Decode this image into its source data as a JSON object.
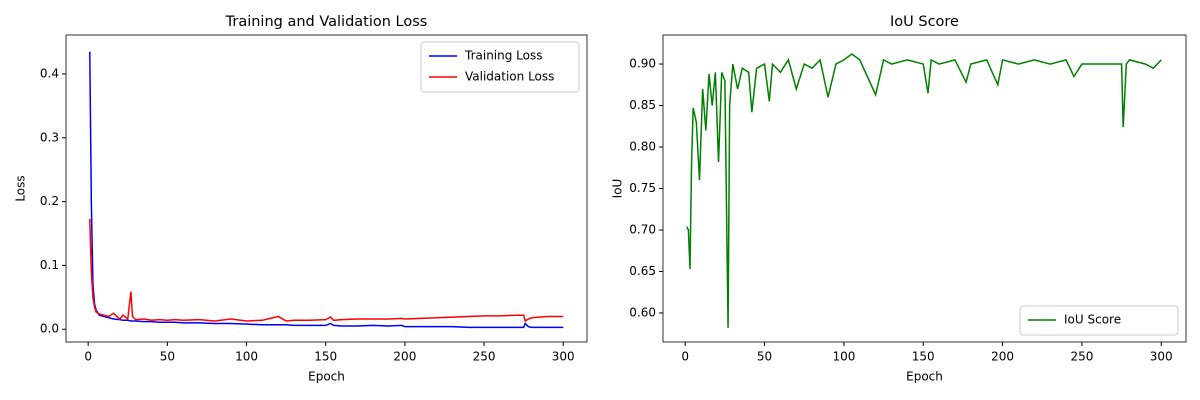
{
  "chart_data": [
    {
      "type": "line",
      "title": "Training and Validation Loss",
      "x_label": "Epoch",
      "y_label": "Loss",
      "x": [
        1,
        2,
        3,
        4,
        5,
        7,
        10,
        13,
        16,
        20,
        22,
        25,
        27,
        28,
        30,
        35,
        40,
        45,
        50,
        55,
        60,
        70,
        80,
        90,
        100,
        110,
        120,
        125,
        130,
        140,
        150,
        153,
        155,
        160,
        170,
        180,
        190,
        198,
        200,
        210,
        220,
        230,
        240,
        250,
        260,
        270,
        275,
        276,
        278,
        280,
        290,
        300
      ],
      "series": [
        {
          "name": "Training Loss",
          "color": "#0000ff",
          "values": [
            0.435,
            0.2,
            0.07,
            0.04,
            0.03,
            0.022,
            0.02,
            0.018,
            0.016,
            0.015,
            0.014,
            0.014,
            0.013,
            0.013,
            0.013,
            0.012,
            0.012,
            0.011,
            0.011,
            0.011,
            0.01,
            0.01,
            0.009,
            0.009,
            0.008,
            0.007,
            0.007,
            0.007,
            0.006,
            0.006,
            0.006,
            0.009,
            0.006,
            0.005,
            0.005,
            0.006,
            0.005,
            0.006,
            0.004,
            0.004,
            0.004,
            0.004,
            0.003,
            0.003,
            0.003,
            0.003,
            0.003,
            0.009,
            0.004,
            0.003,
            0.003,
            0.003
          ]
        },
        {
          "name": "Validation Loss",
          "color": "#ff0000",
          "values": [
            0.173,
            0.09,
            0.05,
            0.035,
            0.027,
            0.024,
            0.022,
            0.02,
            0.025,
            0.016,
            0.022,
            0.016,
            0.059,
            0.02,
            0.015,
            0.016,
            0.014,
            0.015,
            0.014,
            0.015,
            0.014,
            0.015,
            0.013,
            0.016,
            0.013,
            0.014,
            0.02,
            0.013,
            0.014,
            0.014,
            0.015,
            0.019,
            0.014,
            0.015,
            0.016,
            0.016,
            0.016,
            0.017,
            0.016,
            0.017,
            0.018,
            0.019,
            0.02,
            0.021,
            0.021,
            0.022,
            0.022,
            0.013,
            0.016,
            0.018,
            0.02,
            0.02
          ]
        }
      ],
      "xlim": [
        -14,
        315
      ],
      "ylim": [
        -0.02,
        0.461
      ],
      "xticks": [
        0,
        50,
        100,
        150,
        200,
        250,
        300
      ],
      "yticks": [
        {
          "value": 0,
          "label": "0.0"
        },
        0.1,
        0.2,
        0.3,
        0.4
      ],
      "legend": "upper-right"
    },
    {
      "type": "line",
      "title": "IoU Score",
      "x_label": "Epoch",
      "y_label": "IoU",
      "x": [
        1,
        2,
        3,
        4,
        5,
        7,
        9,
        11,
        13,
        15,
        17,
        19,
        21,
        23,
        25,
        27,
        28,
        30,
        33,
        36,
        40,
        42,
        45,
        50,
        53,
        55,
        60,
        65,
        70,
        75,
        80,
        85,
        90,
        95,
        100,
        105,
        110,
        120,
        125,
        130,
        140,
        150,
        153,
        155,
        160,
        170,
        177,
        180,
        190,
        197,
        200,
        210,
        220,
        230,
        240,
        245,
        250,
        260,
        270,
        275,
        276,
        278,
        280,
        290,
        295,
        300
      ],
      "series": [
        {
          "name": "IoU Score",
          "color": "#008000",
          "values": [
            0.704,
            0.7,
            0.653,
            0.78,
            0.847,
            0.83,
            0.76,
            0.87,
            0.82,
            0.888,
            0.85,
            0.89,
            0.782,
            0.89,
            0.88,
            0.582,
            0.85,
            0.9,
            0.87,
            0.895,
            0.89,
            0.842,
            0.895,
            0.9,
            0.855,
            0.9,
            0.89,
            0.905,
            0.87,
            0.9,
            0.895,
            0.905,
            0.86,
            0.9,
            0.905,
            0.912,
            0.905,
            0.863,
            0.905,
            0.9,
            0.905,
            0.9,
            0.865,
            0.905,
            0.9,
            0.905,
            0.878,
            0.9,
            0.905,
            0.875,
            0.905,
            0.9,
            0.905,
            0.9,
            0.905,
            0.885,
            0.9,
            0.9,
            0.9,
            0.9,
            0.824,
            0.9,
            0.905,
            0.9,
            0.895,
            0.905
          ]
        }
      ],
      "xlim": [
        -14,
        315.6
      ],
      "ylim": [
        0.565,
        0.935
      ],
      "xticks": [
        0,
        50,
        100,
        150,
        200,
        250,
        300
      ],
      "yticks": [
        {
          "value": 0.6,
          "label": "0.60"
        },
        0.65,
        {
          "value": 0.7,
          "label": "0.70"
        },
        0.75,
        {
          "value": 0.8,
          "label": "0.80"
        },
        0.85,
        {
          "value": 0.9,
          "label": "0.90"
        }
      ],
      "legend": "lower-right"
    }
  ]
}
